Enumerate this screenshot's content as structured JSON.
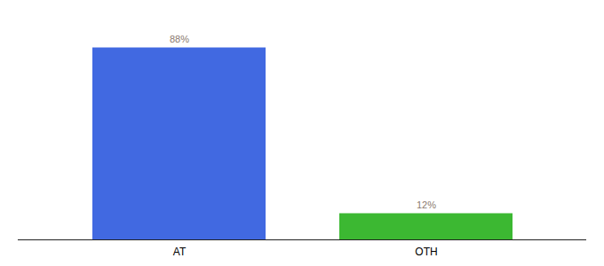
{
  "chart_data": {
    "type": "bar",
    "categories": [
      "AT",
      "OTH"
    ],
    "values": [
      88,
      12
    ],
    "value_labels": [
      "88%",
      "12%"
    ],
    "colors": [
      "#4169e1",
      "#3cb832"
    ],
    "ylim": [
      0,
      100
    ],
    "data_labels": true,
    "tick_labels": "x",
    "grid": false
  }
}
